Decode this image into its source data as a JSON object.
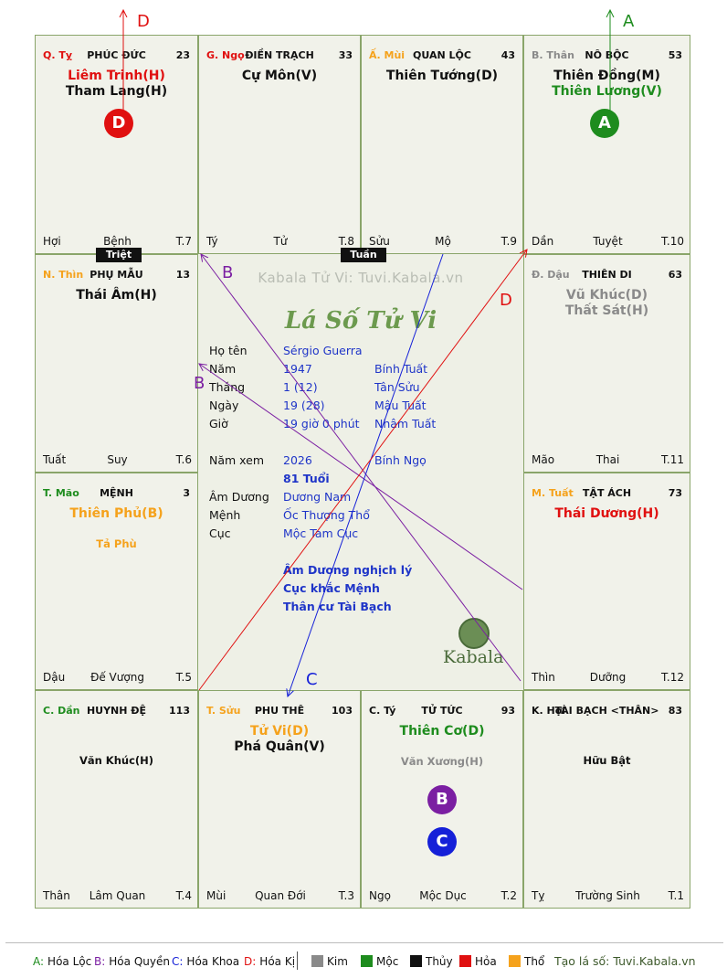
{
  "colors": {
    "green": "#1e8c1e",
    "purple": "#7b1fa2",
    "blue": "#1520d8",
    "red": "#e01010",
    "orange": "#f5a21c",
    "gray": "#8a8a8a",
    "black": "#111111",
    "navy": "#1f35c8"
  },
  "tags": {
    "triet": "Triệt",
    "tuan": "Tuần"
  },
  "cells": [
    {
      "stem": "Q. Tỵ",
      "stem_color": "#e01010",
      "palace": "PHÚC ĐỨC",
      "num": "23",
      "stars": [
        {
          "t": "Liêm Trinh(H)",
          "c": "#e01010",
          "k": "major"
        },
        {
          "t": "Tham Lang(H)",
          "c": "#111111",
          "k": "major"
        }
      ],
      "foot": [
        "Hợi",
        "Bệnh",
        "T.7"
      ]
    },
    {
      "stem": "G. Ngọ",
      "stem_color": "#e01010",
      "palace": "ĐIỀN TRẠCH",
      "num": "33",
      "stars": [
        {
          "t": "Cự Môn(V)",
          "c": "#111111",
          "k": "major"
        }
      ],
      "foot": [
        "Tý",
        "Tử",
        "T.8"
      ]
    },
    {
      "stem": "Ấ. Mùi",
      "stem_color": "#f5a21c",
      "palace": "QUAN LỘC",
      "num": "43",
      "stars": [
        {
          "t": "Thiên Tướng(D)",
          "c": "#111111",
          "k": "major"
        }
      ],
      "foot": [
        "Sửu",
        "Mộ",
        "T.9"
      ]
    },
    {
      "stem": "B. Thân",
      "stem_color": "#8a8a8a",
      "palace": "NÔ BỘC",
      "num": "53",
      "stars": [
        {
          "t": "Thiên Đồng(M)",
          "c": "#111111",
          "k": "major"
        },
        {
          "t": "Thiên Lương(V)",
          "c": "#1e8c1e",
          "k": "major"
        }
      ],
      "foot": [
        "Dần",
        "Tuyệt",
        "T.10"
      ]
    },
    {
      "stem": "N. Thìn",
      "stem_color": "#f5a21c",
      "palace": "PHỤ MẪU",
      "num": "13",
      "stars": [
        {
          "t": "Thái Âm(H)",
          "c": "#111111",
          "k": "major"
        }
      ],
      "foot": [
        "Tuất",
        "Suy",
        "T.6"
      ]
    },
    {
      "stem": "Đ. Dậu",
      "stem_color": "#8a8a8a",
      "palace": "THIÊN DI",
      "num": "63",
      "stars": [
        {
          "t": "Vũ Khúc(D)",
          "c": "#8a8a8a",
          "k": "major"
        },
        {
          "t": "Thất Sát(H)",
          "c": "#8a8a8a",
          "k": "major"
        }
      ],
      "foot": [
        "Mão",
        "Thai",
        "T.11"
      ]
    },
    {
      "stem": "T. Mão",
      "stem_color": "#1e8c1e",
      "palace": "MỆNH",
      "num": "3",
      "stars": [
        {
          "t": "Thiên Phủ(B)",
          "c": "#f5a21c",
          "k": "major"
        },
        {
          "t": "",
          "c": "#111111",
          "k": "minor"
        },
        {
          "t": "Tả Phù",
          "c": "#f5a21c",
          "k": "minor"
        }
      ],
      "foot": [
        "Dậu",
        "Đế Vượng",
        "T.5"
      ]
    },
    {
      "stem": "M. Tuất",
      "stem_color": "#f5a21c",
      "palace": "TẬT ÁCH",
      "num": "73",
      "stars": [
        {
          "t": "Thái Dương(H)",
          "c": "#e01010",
          "k": "major"
        }
      ],
      "foot": [
        "Thìn",
        "Dưỡng",
        "T.12"
      ]
    },
    {
      "stem": "C. Dần",
      "stem_color": "#1e8c1e",
      "palace": "HUYNH ĐỆ",
      "num": "113",
      "stars": [
        {
          "t": "",
          "c": "#111111",
          "k": "minor"
        },
        {
          "t": "",
          "c": "#111111",
          "k": "minor"
        },
        {
          "t": "Văn Khúc(H)",
          "c": "#111111",
          "k": "minor"
        }
      ],
      "foot": [
        "Thân",
        "Lâm Quan",
        "T.4"
      ]
    },
    {
      "stem": "T. Sửu",
      "stem_color": "#f5a21c",
      "palace": "PHU THÊ",
      "num": "103",
      "stars": [
        {
          "t": "Tử Vi(D)",
          "c": "#f5a21c",
          "k": "major"
        },
        {
          "t": "Phá Quân(V)",
          "c": "#111111",
          "k": "major"
        }
      ],
      "foot": [
        "Mùi",
        "Quan Đới",
        "T.3"
      ]
    },
    {
      "stem": "C. Tý",
      "stem_color": "#111111",
      "palace": "TỬ TỨC",
      "num": "93",
      "stars": [
        {
          "t": "Thiên Cơ(D)",
          "c": "#1e8c1e",
          "k": "major"
        },
        {
          "t": "",
          "c": "#111111",
          "k": "minor"
        },
        {
          "t": "Văn Xương(H)",
          "c": "#8a8a8a",
          "k": "minor"
        }
      ],
      "foot": [
        "Ngọ",
        "Mộc Dục",
        "T.2"
      ]
    },
    {
      "stem": "K. Hợi",
      "stem_color": "#111111",
      "palace": "TÀI BẠCH <THÂN>",
      "num": "83",
      "stars": [
        {
          "t": "",
          "c": "#111111",
          "k": "minor"
        },
        {
          "t": "",
          "c": "#111111",
          "k": "minor"
        },
        {
          "t": "Hữu Bật",
          "c": "#111111",
          "k": "minor"
        }
      ],
      "foot": [
        "Tỵ",
        "Trường Sinh",
        "T.1"
      ]
    }
  ],
  "circles": [
    {
      "letter": "D",
      "color": "#e01010"
    },
    {
      "letter": "A",
      "color": "#1e8c1e"
    },
    {
      "letter": "B",
      "color": "#7b1fa2"
    },
    {
      "letter": "C",
      "color": "#1520d8"
    }
  ],
  "center": {
    "watermark": "Kabala Tử Vi: Tuvi.Kabala.vn",
    "title": "Lá Số Tử Vi",
    "rows": [
      {
        "label": "Họ tên",
        "v1": "Sérgio Guerra",
        "v2": ""
      },
      {
        "label": "Năm",
        "v1": "1947",
        "v2": "Bính Tuất"
      },
      {
        "label": "Tháng",
        "v1": "1  (12)",
        "v2": "Tân Sửu"
      },
      {
        "label": "Ngày",
        "v1": "19  (28)",
        "v2": "Mậu Tuất"
      },
      {
        "label": "Giờ",
        "v1": "19 giờ 0 phút",
        "v2": "Nhâm Tuất"
      }
    ],
    "rows2": [
      {
        "label": "Năm xem",
        "v1": "2026",
        "v2": "Bính Ngọ"
      },
      {
        "label": "",
        "v1": "81 Tuổi",
        "v2": ""
      },
      {
        "label": "Âm Dương",
        "v1": "Dương Nam",
        "v2": ""
      },
      {
        "label": "Mệnh",
        "v1": "Ốc Thượng Thổ",
        "v2": ""
      },
      {
        "label": "Cục",
        "v1": "Mộc Tam Cục",
        "v2": ""
      }
    ],
    "notes": [
      "Âm Dương nghịch lý",
      "Cục khắc Mệnh",
      "Thân cư Tài Bạch"
    ],
    "logo": "Kabala"
  },
  "arrow_labels": {
    "d_top": "D",
    "a_top": "A",
    "b1": "B",
    "b2": "B",
    "c": "C",
    "d_mid": "D"
  },
  "legend": {
    "items": [
      {
        "k": "A",
        "t": "Hóa Lộc",
        "c": "#1e8c1e"
      },
      {
        "k": "B",
        "t": "Hóa Quyền",
        "c": "#7b1fa2"
      },
      {
        "k": "C",
        "t": "Hóa Khoa",
        "c": "#1520d8"
      },
      {
        "k": "D",
        "t": "Hóa Kị",
        "c": "#e01010"
      }
    ],
    "elements": [
      {
        "t": "Kim",
        "c": "#8a8a8a"
      },
      {
        "t": "Mộc",
        "c": "#1e8c1e"
      },
      {
        "t": "Thủy",
        "c": "#111111"
      },
      {
        "t": "Hỏa",
        "c": "#e01010"
      },
      {
        "t": "Thổ",
        "c": "#f5a21c"
      }
    ],
    "credit": "Tạo lá số: Tuvi.Kabala.vn"
  }
}
